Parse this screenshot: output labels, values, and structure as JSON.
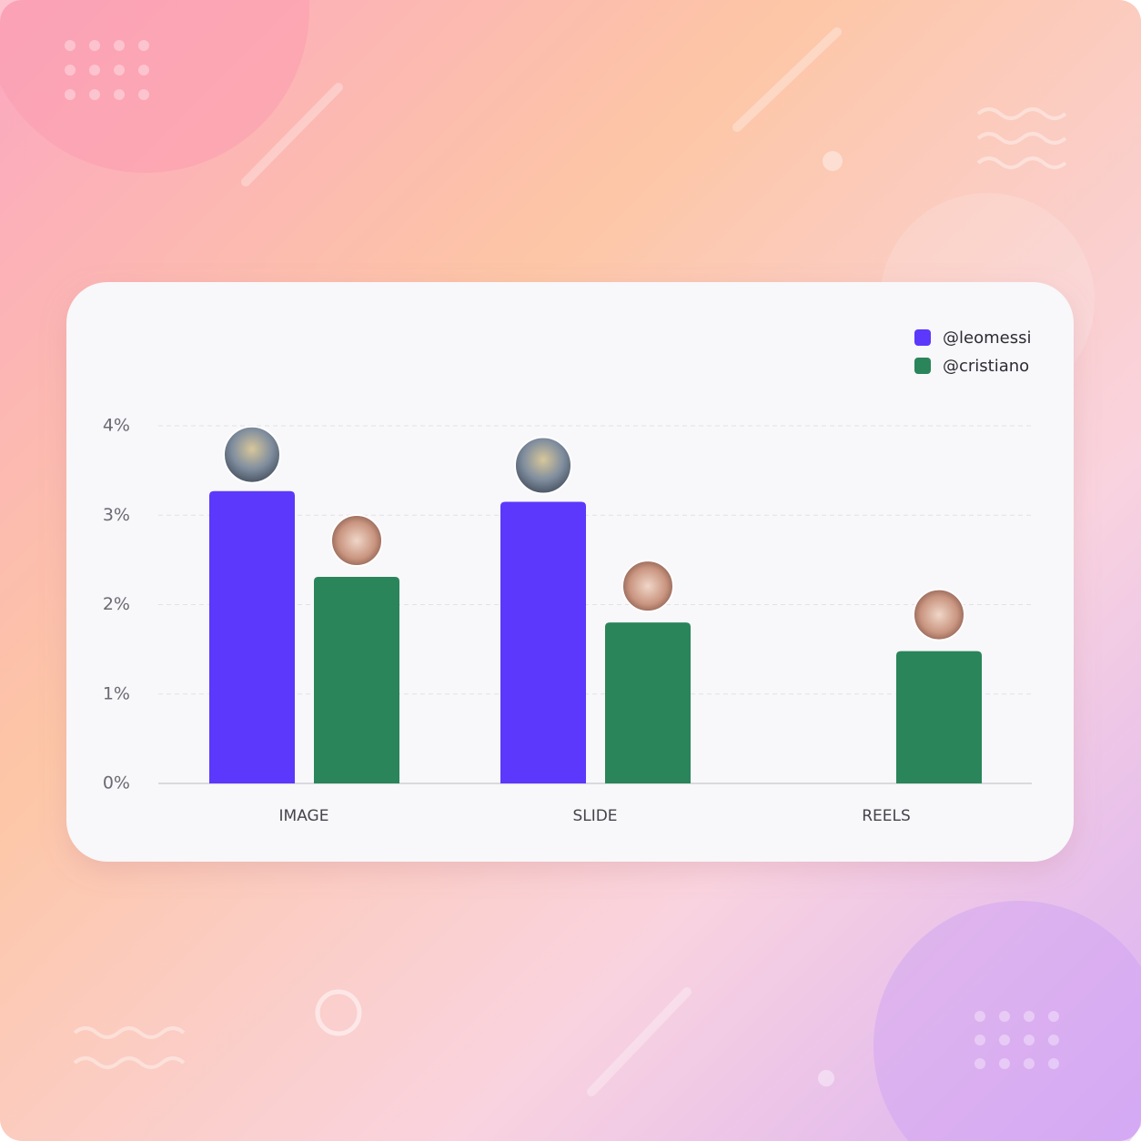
{
  "chart_data": {
    "type": "bar",
    "categories": [
      "IMAGE",
      "SLIDE",
      "REELS"
    ],
    "series": [
      {
        "name": "@leomessi",
        "color": "#5b38fb",
        "values": [
          3.27,
          3.15,
          null
        ]
      },
      {
        "name": "@cristiano",
        "color": "#2a855a",
        "values": [
          2.31,
          1.8,
          1.48
        ]
      }
    ],
    "ylim": [
      0,
      4
    ],
    "yticks": [
      {
        "value": 0,
        "label": "0%"
      },
      {
        "value": 1,
        "label": "1%"
      },
      {
        "value": 2,
        "label": "2%"
      },
      {
        "value": 3,
        "label": "3%"
      },
      {
        "value": 4,
        "label": "4%"
      }
    ],
    "grid": true,
    "legend": "top-right"
  }
}
